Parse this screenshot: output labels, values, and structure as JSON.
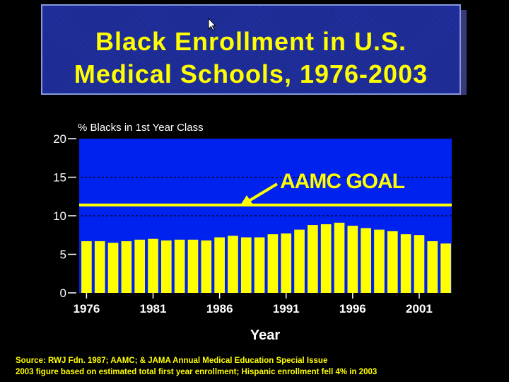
{
  "title": {
    "line1": "Black Enrollment in U.S.",
    "line2": "Medical Schools, 1976-2003"
  },
  "colors": {
    "background": "#000000",
    "plot_area": "#0022ee",
    "bars": "#ffff00",
    "text": "#ffffff",
    "title_text": "#ffff00",
    "title_box": "#2233aa"
  },
  "chart_data": {
    "type": "bar",
    "title": "",
    "ylabel": "% Blacks in 1st Year Class",
    "xlabel": "Year",
    "ylim": [
      0,
      20
    ],
    "yticks": [
      0,
      5,
      10,
      15,
      20
    ],
    "dotted_gridlines": [
      10,
      15
    ],
    "categories": [
      "1976",
      "1977",
      "1978",
      "1979",
      "1980",
      "1981",
      "1982",
      "1983",
      "1984",
      "1985",
      "1986",
      "1987",
      "1988",
      "1989",
      "1990",
      "1991",
      "1992",
      "1993",
      "1994",
      "1995",
      "1996",
      "1997",
      "1998",
      "1999",
      "2000",
      "2001",
      "2002",
      "2003"
    ],
    "xtick_labels": [
      "1976",
      "1981",
      "1986",
      "1991",
      "1996",
      "2001"
    ],
    "values": [
      6.7,
      6.7,
      6.5,
      6.7,
      6.9,
      7.0,
      6.8,
      6.9,
      6.9,
      6.8,
      7.2,
      7.4,
      7.2,
      7.2,
      7.6,
      7.7,
      8.2,
      8.8,
      8.9,
      9.1,
      8.7,
      8.4,
      8.2,
      8.0,
      7.6,
      7.5,
      6.7,
      6.4
    ],
    "goal_line": {
      "label": "AAMC GOAL",
      "value": 11.4
    }
  },
  "source": {
    "line1": "Source: RWJ Fdn. 1987; AAMC; & JAMA Annual Medical Education Special Issue",
    "line2": "2003 figure based on estimated total first year enrollment; Hispanic enrollment fell 4% in 2003"
  }
}
